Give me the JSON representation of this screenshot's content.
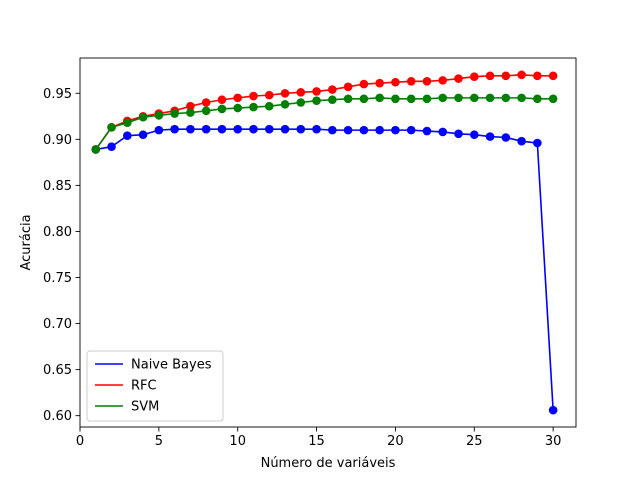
{
  "chart_data": {
    "type": "line",
    "xlabel": "Número de variáveis",
    "ylabel": "Acurácia",
    "xlim": [
      0,
      31.45
    ],
    "ylim": [
      0.5877,
      0.9883
    ],
    "xticks": [
      0,
      5,
      10,
      15,
      20,
      25,
      30
    ],
    "yticks": [
      0.6,
      0.65,
      0.7,
      0.75,
      0.8,
      0.85,
      0.9,
      0.95
    ],
    "ytick_labels": [
      "0.60",
      "0.65",
      "0.70",
      "0.75",
      "0.80",
      "0.85",
      "0.90",
      "0.95"
    ],
    "grid": false,
    "legend_position": "lower-left",
    "x": [
      1,
      2,
      3,
      4,
      5,
      6,
      7,
      8,
      9,
      10,
      11,
      12,
      13,
      14,
      15,
      16,
      17,
      18,
      19,
      20,
      21,
      22,
      23,
      24,
      25,
      26,
      27,
      28,
      29,
      30
    ],
    "series": [
      {
        "name": "Naive Bayes",
        "color": "#0000ff",
        "values": [
          0.889,
          0.892,
          0.904,
          0.905,
          0.91,
          0.911,
          0.911,
          0.911,
          0.911,
          0.911,
          0.911,
          0.911,
          0.911,
          0.911,
          0.911,
          0.91,
          0.91,
          0.91,
          0.91,
          0.91,
          0.91,
          0.909,
          0.908,
          0.906,
          0.905,
          0.903,
          0.902,
          0.898,
          0.896,
          0.606
        ]
      },
      {
        "name": "RFC",
        "color": "#ff0000",
        "values": [
          0.889,
          0.913,
          0.92,
          0.925,
          0.928,
          0.931,
          0.936,
          0.94,
          0.943,
          0.945,
          0.947,
          0.948,
          0.95,
          0.951,
          0.952,
          0.954,
          0.957,
          0.96,
          0.961,
          0.962,
          0.963,
          0.963,
          0.964,
          0.966,
          0.968,
          0.969,
          0.969,
          0.97,
          0.969,
          0.969
        ]
      },
      {
        "name": "SVM",
        "color": "#008000",
        "values": [
          0.889,
          0.913,
          0.918,
          0.924,
          0.926,
          0.928,
          0.929,
          0.931,
          0.933,
          0.934,
          0.935,
          0.936,
          0.938,
          0.94,
          0.942,
          0.943,
          0.944,
          0.944,
          0.945,
          0.944,
          0.944,
          0.944,
          0.945,
          0.945,
          0.945,
          0.945,
          0.945,
          0.945,
          0.944,
          0.944
        ]
      }
    ]
  }
}
